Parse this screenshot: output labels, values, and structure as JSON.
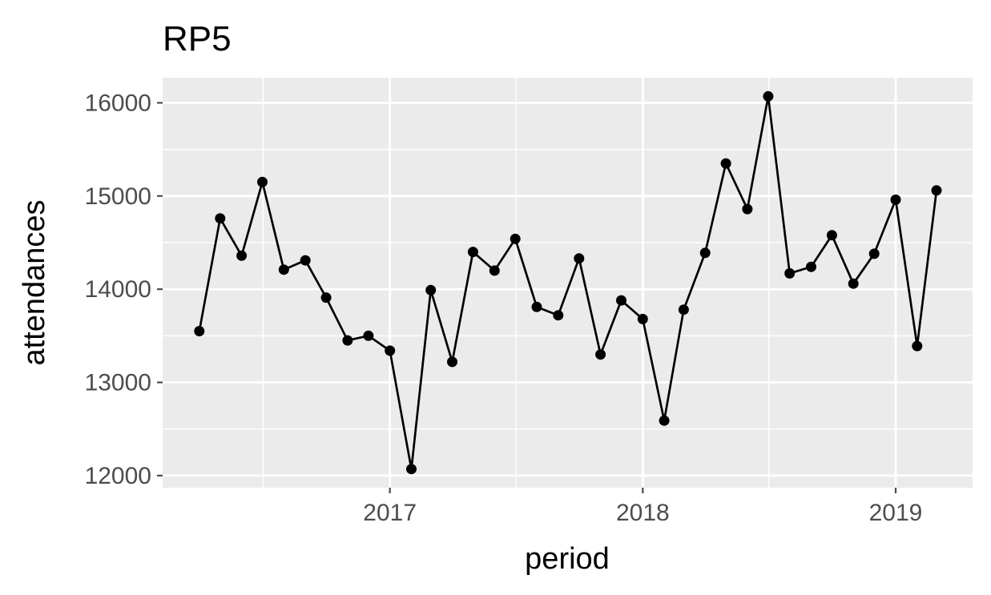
{
  "chart_data": {
    "type": "line",
    "title": "RP5",
    "xlabel": "period",
    "ylabel": "attendances",
    "x_tick_labels": [
      "2017",
      "2018",
      "2019"
    ],
    "x_tick_dates": [
      "2017-01-01",
      "2018-01-01",
      "2019-01-01"
    ],
    "y_tick_labels": [
      "12000",
      "13000",
      "14000",
      "15000",
      "16000"
    ],
    "y_ticks": [
      12000,
      13000,
      14000,
      15000,
      16000
    ],
    "xlim": [
      "2016-02-08",
      "2019-04-22"
    ],
    "ylim": [
      11870,
      16270
    ],
    "grid": true,
    "points": true,
    "colors": {
      "panel": "#ebebeb",
      "grid": "#ffffff",
      "line": "#000000",
      "ticks": "#4d4d4d"
    },
    "series": [
      {
        "x": [
          "2016-04-01",
          "2016-05-01",
          "2016-06-01",
          "2016-07-01",
          "2016-08-01",
          "2016-09-01",
          "2016-10-01",
          "2016-11-01",
          "2016-12-01",
          "2017-01-01",
          "2017-02-01",
          "2017-03-01",
          "2017-04-01",
          "2017-05-01",
          "2017-06-01",
          "2017-07-01",
          "2017-08-01",
          "2017-09-01",
          "2017-10-01",
          "2017-11-01",
          "2017-12-01",
          "2018-01-01",
          "2018-02-01",
          "2018-03-01",
          "2018-04-01",
          "2018-05-01",
          "2018-06-01",
          "2018-07-01",
          "2018-08-01",
          "2018-09-01",
          "2018-10-01",
          "2018-11-01",
          "2018-12-01",
          "2019-01-01",
          "2019-02-01",
          "2019-03-01"
        ],
        "values": [
          13550,
          14760,
          14360,
          15150,
          14210,
          14310,
          13910,
          13450,
          13500,
          13340,
          12070,
          13990,
          13220,
          14400,
          14200,
          14540,
          13810,
          13720,
          14330,
          13300,
          13880,
          13680,
          12590,
          13780,
          14390,
          15350,
          14860,
          16070,
          14170,
          14240,
          14580,
          14060,
          14380,
          14960,
          13390,
          15060
        ]
      }
    ]
  }
}
